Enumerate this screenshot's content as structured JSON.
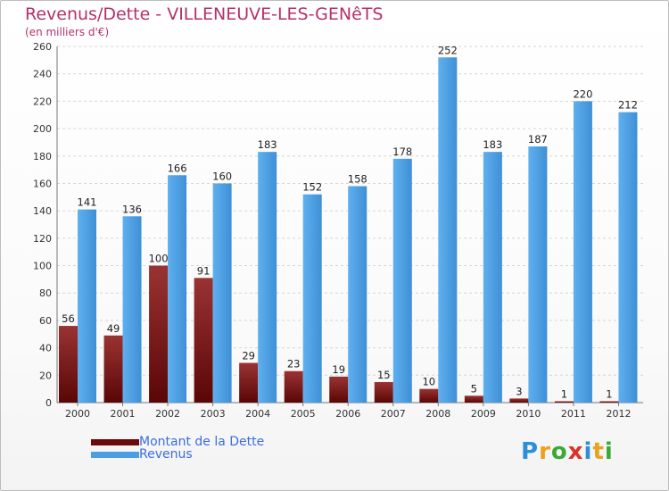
{
  "chart_data": {
    "type": "bar",
    "title": "Revenus/Dette - VILLENEUVE-LES-GENêTS",
    "subtitle": "(en milliers d'€)",
    "xlabel": "",
    "ylabel": "",
    "ylim": [
      0,
      260
    ],
    "yticks": [
      0,
      20,
      40,
      60,
      80,
      100,
      120,
      140,
      160,
      180,
      200,
      220,
      240,
      260
    ],
    "grid": true,
    "legend_position": "bottom-left",
    "categories": [
      "2000",
      "2001",
      "2002",
      "2003",
      "2004",
      "2005",
      "2006",
      "2007",
      "2008",
      "2009",
      "2010",
      "2011",
      "2012"
    ],
    "series": [
      {
        "name": "Montant de la Dette",
        "color": "#7a1010",
        "values": [
          56,
          49,
          100,
          91,
          29,
          23,
          19,
          15,
          10,
          5,
          3,
          1,
          1
        ]
      },
      {
        "name": "Revenus",
        "color": "#4a9ee3",
        "values": [
          141,
          136,
          166,
          160,
          183,
          152,
          158,
          178,
          252,
          183,
          187,
          220,
          212
        ]
      }
    ]
  },
  "logo": {
    "letters": [
      "P",
      "r",
      "o",
      "x",
      "i",
      "t",
      "i"
    ],
    "colors": [
      "#2d8fd8",
      "#e8a21b",
      "#3aaa35",
      "#d8352a",
      "#2d8fd8",
      "#e8a21b",
      "#3aaa35"
    ]
  }
}
